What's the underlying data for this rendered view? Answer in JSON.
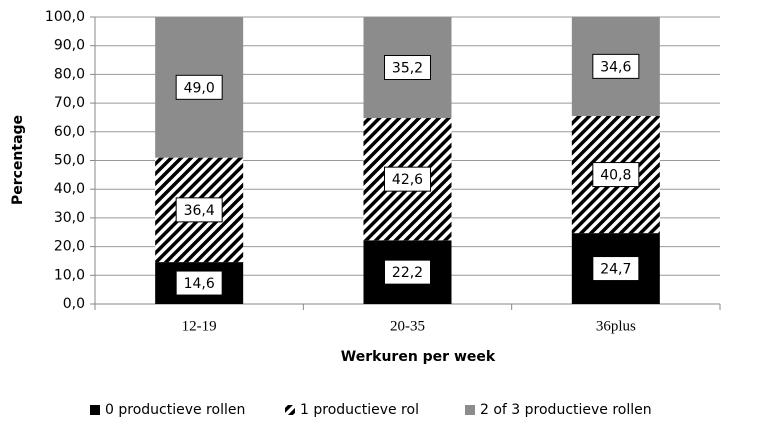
{
  "chart_data": {
    "type": "stacked_bar",
    "xlabel": "Werkuren per week",
    "ylabel": "Percentage",
    "categories": [
      "12-19",
      "20-35",
      "36plus"
    ],
    "series": [
      {
        "name": "0 productieve rollen",
        "color": "#000000",
        "values": [
          14.6,
          22.2,
          24.7
        ],
        "value_labels": [
          "14,6",
          "22,2",
          "24,7"
        ]
      },
      {
        "name": "1 productieve rol",
        "color": "#000000",
        "hatch": true,
        "values": [
          36.4,
          42.6,
          40.8
        ],
        "value_labels": [
          "36,4",
          "42,6",
          "40,8"
        ]
      },
      {
        "name": "2 of 3 productieve rollen",
        "color": "#8c8c8c",
        "values": [
          49.0,
          35.2,
          34.6
        ],
        "value_labels": [
          "49,0",
          "35,2",
          "34,6"
        ]
      }
    ],
    "ylim": [
      0,
      100
    ],
    "yticks": [
      {
        "value": 0,
        "label": "0,0"
      },
      {
        "value": 10,
        "label": "10,0"
      },
      {
        "value": 20,
        "label": "20,0"
      },
      {
        "value": 30,
        "label": "30,0"
      },
      {
        "value": 40,
        "label": "40,0"
      },
      {
        "value": 50,
        "label": "50,0"
      },
      {
        "value": 60,
        "label": "60,0"
      },
      {
        "value": 70,
        "label": "70,0"
      },
      {
        "value": 80,
        "label": "80,0"
      },
      {
        "value": 90,
        "label": "90,0"
      },
      {
        "value": 100,
        "label": "100,0"
      }
    ],
    "grid": true,
    "legend": "bottom"
  }
}
